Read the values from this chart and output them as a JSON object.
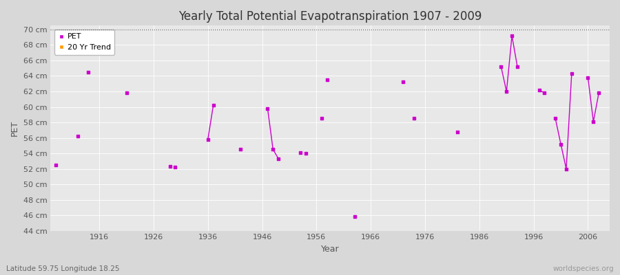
{
  "title": "Yearly Total Potential Evapotranspiration 1907 - 2009",
  "xlabel": "Year",
  "ylabel": "PET",
  "subtitle": "Latitude 59.75 Longitude 18.25",
  "watermark": "worldspecies.org",
  "ylim": [
    44,
    70.5
  ],
  "xlim": [
    1907,
    2010
  ],
  "ytick_labels": [
    "44 cm",
    "46 cm",
    "48 cm",
    "50 cm",
    "52 cm",
    "54 cm",
    "56 cm",
    "58 cm",
    "60 cm",
    "62 cm",
    "64 cm",
    "66 cm",
    "68 cm",
    "70 cm"
  ],
  "ytick_values": [
    44,
    46,
    48,
    50,
    52,
    54,
    56,
    58,
    60,
    62,
    64,
    66,
    68,
    70
  ],
  "xtick_values": [
    1916,
    1926,
    1936,
    1946,
    1956,
    1966,
    1976,
    1986,
    1996,
    2006
  ],
  "fig_bg_color": "#d8d8d8",
  "plot_bg_color": "#e8e8e8",
  "grid_color": "#ffffff",
  "pet_color": "#cc00cc",
  "trend_color": "#ff9900",
  "pet_scatter": {
    "years": [
      1908,
      1912,
      1914,
      1921,
      1929,
      1930,
      1936,
      1937,
      1942,
      1947,
      1948,
      1949,
      1953,
      1954,
      1957,
      1958,
      1963,
      1972,
      1974,
      1982,
      1990,
      1991,
      1992,
      1993,
      1997,
      1998,
      2000,
      2001,
      2002,
      2003,
      2006,
      2007,
      2008
    ],
    "values": [
      52.5,
      56.2,
      64.5,
      61.8,
      52.3,
      52.2,
      55.8,
      60.2,
      54.5,
      59.8,
      54.5,
      53.3,
      54.1,
      54.0,
      58.5,
      63.5,
      45.8,
      63.2,
      58.5,
      56.8,
      65.2,
      62.0,
      69.2,
      65.2,
      62.2,
      61.8,
      58.5,
      55.2,
      52.0,
      64.3,
      63.8,
      58.1,
      61.8
    ]
  },
  "line_segments": [
    {
      "years": [
        1936,
        1937
      ],
      "values": [
        55.8,
        60.2
      ]
    },
    {
      "years": [
        1947,
        1948,
        1949
      ],
      "values": [
        59.8,
        54.5,
        53.3
      ]
    },
    {
      "years": [
        1990,
        1991,
        1992,
        1993
      ],
      "values": [
        65.2,
        62.0,
        69.2,
        65.2
      ]
    },
    {
      "years": [
        1997,
        1998
      ],
      "values": [
        62.2,
        61.8
      ]
    },
    {
      "years": [
        2000,
        2001,
        2002,
        2003
      ],
      "values": [
        58.5,
        55.2,
        52.0,
        64.3
      ]
    },
    {
      "years": [
        2006,
        2007,
        2008
      ],
      "values": [
        63.8,
        58.1,
        61.8
      ]
    }
  ]
}
